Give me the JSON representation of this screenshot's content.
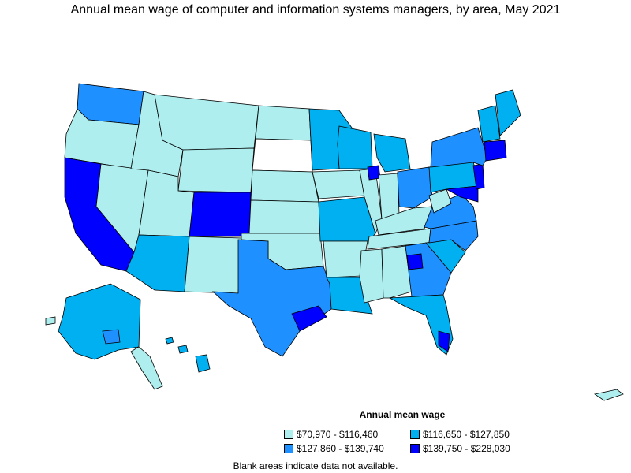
{
  "title": "Annual mean wage of computer and information systems managers, by area, May 2021",
  "legend": {
    "title": "Annual mean wage",
    "items": [
      {
        "label": "$70,970 - $116,460",
        "color": "#aeeeee"
      },
      {
        "label": "$116,650 - $127,850",
        "color": "#00b0f0"
      },
      {
        "label": "$127,860 - $139,740",
        "color": "#1e90ff"
      },
      {
        "label": "$139,750 - $228,030",
        "color": "#0000ff"
      }
    ]
  },
  "note": "Blank areas indicate data not available."
}
